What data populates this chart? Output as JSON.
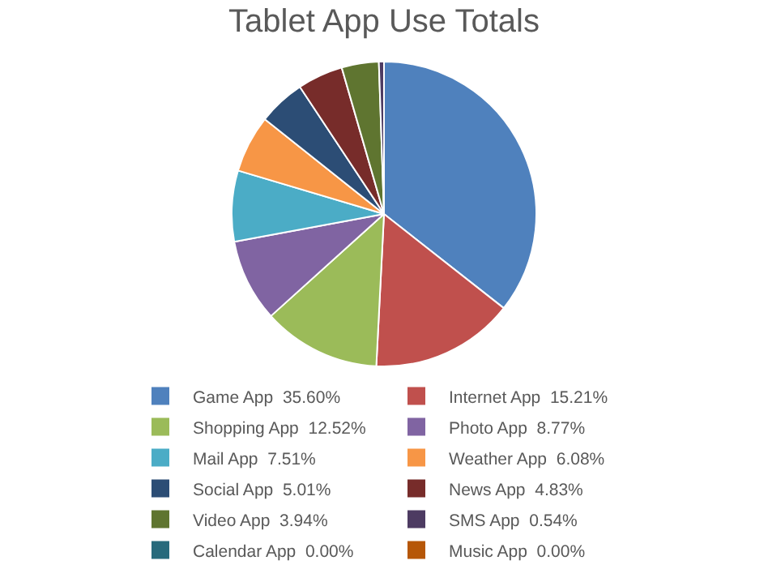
{
  "chart_data": {
    "type": "pie",
    "title": "Tablet App Use Totals",
    "categories": [
      "Game App",
      "Internet App",
      "Shopping App",
      "Photo App",
      "Mail App",
      "Weather App",
      "Social App",
      "News App",
      "Video App",
      "SMS App",
      "Calendar App",
      "Music App"
    ],
    "values": [
      35.6,
      15.21,
      12.52,
      8.77,
      7.51,
      6.08,
      5.01,
      4.83,
      3.94,
      0.54,
      0.0,
      0.0
    ],
    "value_labels": [
      "35.60%",
      "15.21%",
      "12.52%",
      "8.77%",
      "7.51%",
      "6.08%",
      "5.01%",
      "4.83%",
      "3.94%",
      "0.54%",
      "0.00%",
      "0.00%"
    ],
    "colors": [
      "#4f81bd",
      "#c0504d",
      "#9bbb59",
      "#8064a2",
      "#4bacc6",
      "#f79646",
      "#2c4d75",
      "#772c2a",
      "#5f7530",
      "#4d3b62",
      "#276a7c",
      "#b65708"
    ],
    "legend": "bottom"
  }
}
